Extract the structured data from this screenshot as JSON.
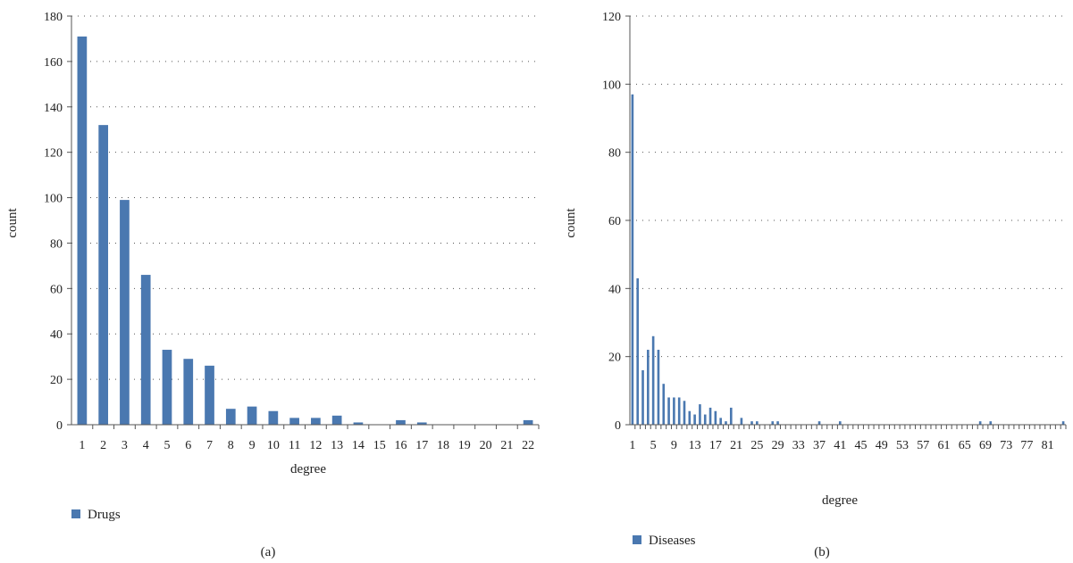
{
  "chart_data": [
    {
      "type": "bar",
      "caption": "(a)",
      "xlabel": "degree",
      "ylabel": "count",
      "ylim": [
        0,
        180
      ],
      "yticks": [
        0,
        20,
        40,
        60,
        80,
        100,
        120,
        140,
        160,
        180
      ],
      "grid": true,
      "legend_position": "bottom-left",
      "color": "#4a78b0",
      "categories": [
        "1",
        "2",
        "3",
        "4",
        "5",
        "6",
        "7",
        "8",
        "9",
        "10",
        "11",
        "12",
        "13",
        "14",
        "15",
        "16",
        "17",
        "18",
        "19",
        "20",
        "21",
        "22"
      ],
      "series": [
        {
          "name": "Drugs",
          "values": [
            171,
            132,
            99,
            66,
            33,
            29,
            26,
            7,
            8,
            6,
            3,
            3,
            4,
            1,
            0,
            2,
            1,
            0,
            0,
            0,
            0,
            2
          ]
        }
      ]
    },
    {
      "type": "bar",
      "caption": "(b)",
      "xlabel": "degree",
      "ylabel": "count",
      "ylim": [
        0,
        120
      ],
      "yticks": [
        0,
        20,
        40,
        60,
        80,
        100,
        120
      ],
      "grid": true,
      "legend_position": "bottom-left",
      "color": "#4a78b0",
      "categories": [
        "1",
        "2",
        "3",
        "4",
        "5",
        "6",
        "7",
        "8",
        "9",
        "10",
        "11",
        "12",
        "13",
        "14",
        "15",
        "16",
        "17",
        "18",
        "19",
        "20",
        "21",
        "22",
        "23",
        "24",
        "25",
        "26",
        "27",
        "28",
        "29",
        "30",
        "31",
        "32",
        "33",
        "34",
        "35",
        "36",
        "37",
        "38",
        "39",
        "40",
        "41",
        "42",
        "43",
        "44",
        "45",
        "46",
        "47",
        "48",
        "49",
        "50",
        "51",
        "52",
        "53",
        "54",
        "55",
        "56",
        "57",
        "58",
        "59",
        "60",
        "61",
        "62",
        "63",
        "64",
        "65",
        "66",
        "67",
        "68",
        "69",
        "70",
        "71",
        "72",
        "73",
        "74",
        "75",
        "76",
        "77",
        "78",
        "79",
        "80",
        "81",
        "82",
        "83",
        "84"
      ],
      "tick_labels": [
        "1",
        "5",
        "9",
        "13",
        "17",
        "21",
        "25",
        "29",
        "33",
        "37",
        "41",
        "45",
        "49",
        "53",
        "57",
        "61",
        "65",
        "69",
        "73",
        "77",
        "81"
      ],
      "series": [
        {
          "name": "Diseases",
          "values": [
            97,
            43,
            16,
            22,
            26,
            22,
            12,
            8,
            8,
            8,
            7,
            4,
            3,
            6,
            3,
            5,
            4,
            2,
            1,
            5,
            0,
            2,
            0,
            1,
            1,
            0,
            0,
            1,
            1,
            0,
            0,
            0,
            0,
            0,
            0,
            0,
            1,
            0,
            0,
            0,
            1,
            0,
            0,
            0,
            0,
            0,
            0,
            0,
            0,
            0,
            0,
            0,
            0,
            0,
            0,
            0,
            0,
            0,
            0,
            0,
            0,
            0,
            0,
            0,
            0,
            0,
            0,
            1,
            0,
            1,
            0,
            0,
            0,
            0,
            0,
            0,
            0,
            0,
            0,
            0,
            0,
            0,
            0,
            1
          ]
        }
      ]
    }
  ]
}
